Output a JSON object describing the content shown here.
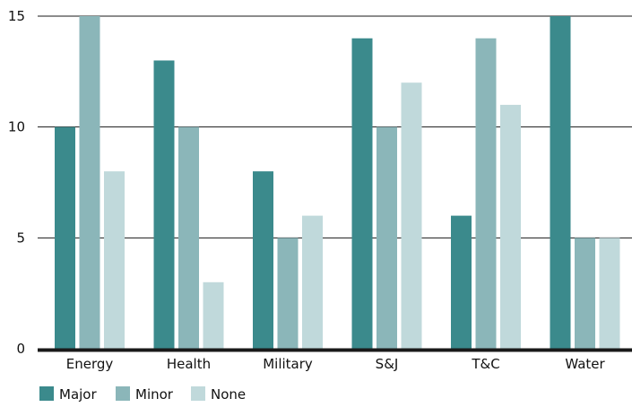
{
  "chart_data": {
    "type": "bar",
    "categories": [
      "Energy",
      "Health",
      "Military",
      "S&J",
      "T&C",
      "Water"
    ],
    "series": [
      {
        "name": "Major",
        "color": "#3b8a8c",
        "values": [
          10,
          13,
          8,
          14,
          6,
          15
        ]
      },
      {
        "name": "Minor",
        "color": "#8bb6b9",
        "values": [
          15,
          10,
          5,
          10,
          14,
          5
        ]
      },
      {
        "name": "None",
        "color": "#c0d9db",
        "values": [
          8,
          3,
          6,
          12,
          11,
          5
        ]
      }
    ],
    "yticks": [
      0,
      5,
      10,
      15
    ],
    "ylim": [
      0,
      15
    ],
    "grid": true,
    "legend_position": "bottom-left"
  }
}
